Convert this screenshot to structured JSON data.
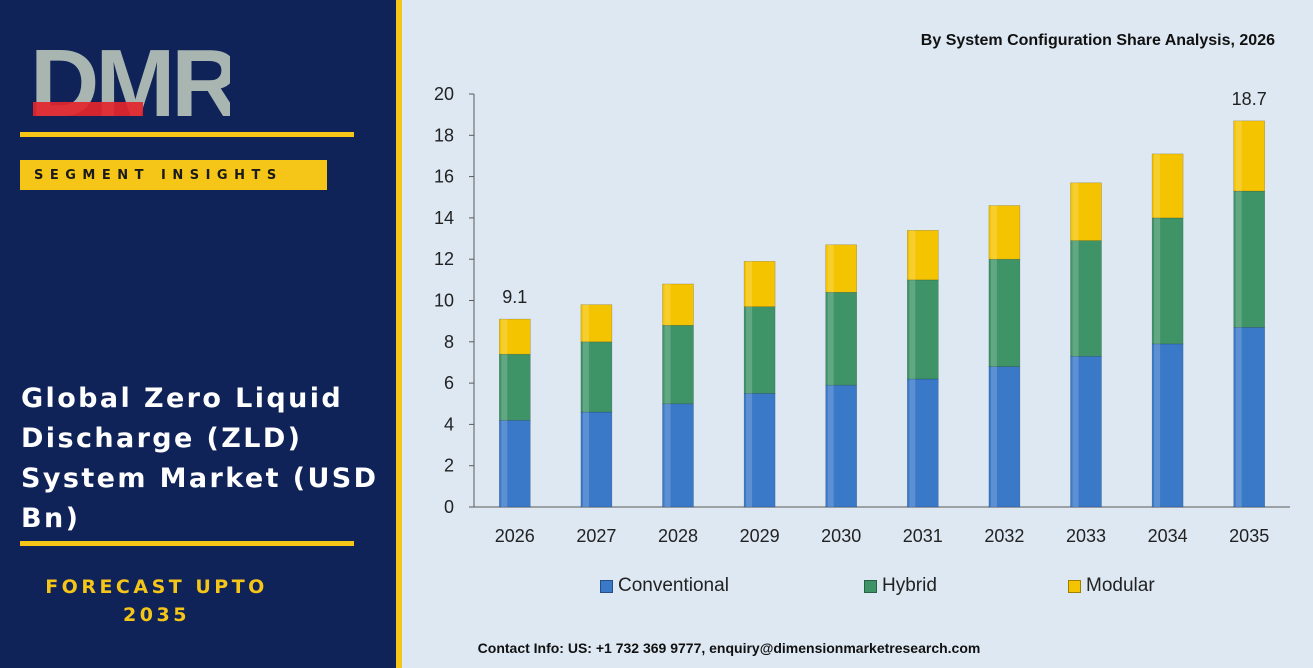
{
  "brand": {
    "logo_text": "DMR"
  },
  "left": {
    "badge": "SEGMENT INSIGHTS",
    "title": "Global Zero Liquid Discharge (ZLD) System Market (USD Bn)",
    "forecast_line1": "FORECAST UPTO",
    "forecast_line2": "2035"
  },
  "colors": {
    "panel": "#0f2359",
    "accent": "#f5c518",
    "logo_red": "#e3262c",
    "logo_grey": "#a8b5b0",
    "conventional": "#3a78c8",
    "hybrid": "#3e9467",
    "modular": "#f5c400"
  },
  "chart_data": {
    "type": "bar",
    "stacked": true,
    "title": "By System Configuration Share Analysis, 2026",
    "categories": [
      "2026",
      "2027",
      "2028",
      "2029",
      "2030",
      "2031",
      "2032",
      "2033",
      "2034",
      "2035"
    ],
    "series": [
      {
        "name": "Conventional",
        "values": [
          4.2,
          4.6,
          5.0,
          5.5,
          5.9,
          6.2,
          6.8,
          7.3,
          7.9,
          8.7
        ]
      },
      {
        "name": "Hybrid",
        "values": [
          3.2,
          3.4,
          3.8,
          4.2,
          4.5,
          4.8,
          5.2,
          5.6,
          6.1,
          6.6
        ]
      },
      {
        "name": "Modular",
        "values": [
          1.7,
          1.8,
          2.0,
          2.2,
          2.3,
          2.4,
          2.6,
          2.8,
          3.1,
          3.4
        ]
      }
    ],
    "data_labels": [
      {
        "category": "2026",
        "text": "9.1"
      },
      {
        "category": "2035",
        "text": "18.7"
      }
    ],
    "yticks": [
      0,
      2,
      4,
      6,
      8,
      10,
      12,
      14,
      16,
      18,
      20
    ],
    "ylim": [
      0,
      20
    ],
    "legend_position": "bottom"
  },
  "footer": {
    "contact": "Contact Info: US: +1 732 369 9777, enquiry@dimensionmarketresearch.com"
  }
}
